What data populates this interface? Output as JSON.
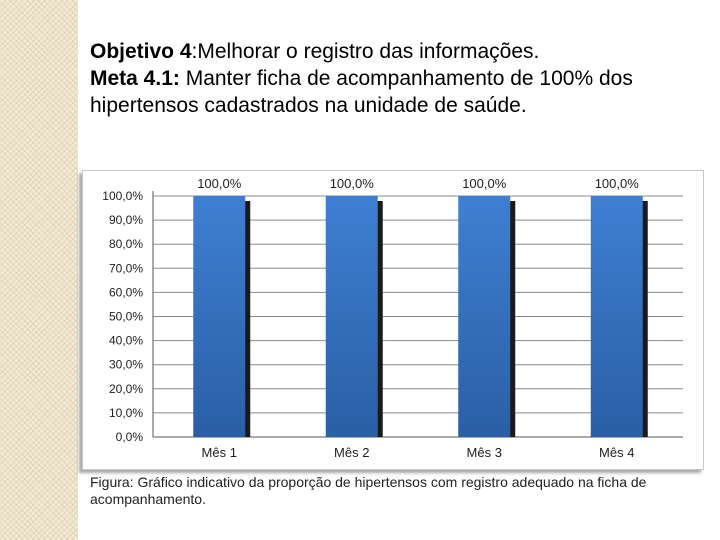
{
  "objective": {
    "label": "Objetivo 4",
    "text": ":Melhorar o registro das informações."
  },
  "goal": {
    "label": "Meta 4.1:",
    "text": " Manter ficha de acompanhamento de 100% dos hipertensos cadastrados na unidade de saúde."
  },
  "caption": "Figura: Gráfico indicativo da proporção de hipertensos com registro adequado na ficha de acompanhamento.",
  "colors": {
    "bar_top": "#3f7fd2",
    "bar_bottom": "#2a5fa5",
    "bar_shadow": "#1a1a1a",
    "gridline": "#8c8c8c"
  },
  "chart_data": {
    "type": "bar",
    "categories": [
      "Mês 1",
      "Mês 2",
      "Mês 3",
      "Mês 4"
    ],
    "values": [
      100.0,
      100.0,
      100.0,
      100.0
    ],
    "data_labels": [
      "100,0%",
      "100,0%",
      "100,0%",
      "100,0%"
    ],
    "yticks": [
      "0,0%",
      "10,0%",
      "20,0%",
      "30,0%",
      "40,0%",
      "50,0%",
      "60,0%",
      "70,0%",
      "80,0%",
      "90,0%",
      "100,0%"
    ],
    "ylim": [
      0,
      100
    ],
    "grid": true,
    "title": "",
    "xlabel": "",
    "ylabel": ""
  }
}
